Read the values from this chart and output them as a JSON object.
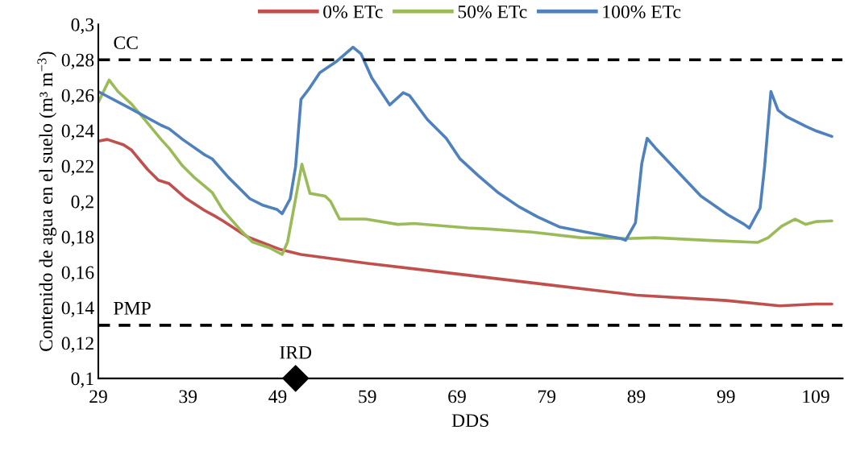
{
  "chart_data": {
    "type": "line",
    "xlabel": "DDS",
    "ylabel": "Contenido de agua en el suelo (m³ m$^{−3}$)",
    "xlim": [
      29,
      112
    ],
    "xticks": [
      29,
      39,
      49,
      59,
      69,
      79,
      89,
      99,
      109
    ],
    "ylim": [
      0.1,
      0.3
    ],
    "yticks": [
      {
        "value": 0.1,
        "label": "0,1"
      },
      {
        "value": 0.12,
        "label": "0,12"
      },
      {
        "value": 0.14,
        "label": "0,14"
      },
      {
        "value": 0.16,
        "label": "0,16"
      },
      {
        "value": 0.18,
        "label": "0,18"
      },
      {
        "value": 0.2,
        "label": "0,2"
      },
      {
        "value": 0.22,
        "label": "0,22"
      },
      {
        "value": 0.24,
        "label": "0,24"
      },
      {
        "value": 0.26,
        "label": "0,26"
      },
      {
        "value": 0.28,
        "label": "0,28"
      },
      {
        "value": 0.3,
        "label": "0,3"
      }
    ],
    "grid": false,
    "legend": "top",
    "line_style": "solid",
    "marker": "none",
    "ref_lines": [
      {
        "axis": "y",
        "value": 0.28,
        "label": "CC",
        "color": "#000000",
        "line_style": "dashed"
      },
      {
        "axis": "y",
        "value": 0.13,
        "label": "PMP",
        "color": "#000000",
        "line_style": "dashed"
      }
    ],
    "series": [
      {
        "name": "0% ETc",
        "color": "#c0504d",
        "x": [
          29,
          30.0,
          31.8,
          32.7,
          34.5,
          35.7,
          36.9,
          38.7,
          40.8,
          41.9,
          42.9,
          45.6,
          49.2,
          51.6,
          59,
          69,
          79,
          89,
          99,
          105,
          109,
          110.8
        ],
        "values": [
          0.234,
          0.235,
          0.232,
          0.229,
          0.218,
          0.212,
          0.21,
          0.202,
          0.195,
          0.192,
          0.189,
          0.18,
          0.173,
          0.17,
          0.165,
          0.159,
          0.153,
          0.147,
          0.144,
          0.141,
          0.142,
          0.142
        ]
      },
      {
        "name": "50% ETc",
        "color": "#9bbb59",
        "x": [
          29,
          30.2,
          31.2,
          32.7,
          34.2,
          36.0,
          36.9,
          38.4,
          39.6,
          41.7,
          42.9,
          45.0,
          46.2,
          48.0,
          49.5,
          50.1,
          51.0,
          51.7,
          52.6,
          54.3,
          54.9,
          55.9,
          58.8,
          62.4,
          64.2,
          70.2,
          72.6,
          77.4,
          82.8,
          87.8,
          91.1,
          96.8,
          102.5,
          103.7,
          105.2,
          106.7,
          107.9,
          109.1,
          110.8
        ],
        "values": [
          0.256,
          0.2685,
          0.262,
          0.255,
          0.246,
          0.235,
          0.23,
          0.22,
          0.214,
          0.205,
          0.195,
          0.183,
          0.177,
          0.174,
          0.17,
          0.177,
          0.2015,
          0.221,
          0.2045,
          0.203,
          0.2,
          0.19,
          0.19,
          0.187,
          0.1875,
          0.185,
          0.1844,
          0.1826,
          0.1795,
          0.179,
          0.1795,
          0.178,
          0.1768,
          0.1795,
          0.186,
          0.19,
          0.187,
          0.1886,
          0.189
        ]
      },
      {
        "name": "100% ETc",
        "color": "#4f81bd",
        "x": [
          29,
          32.4,
          36.0,
          36.9,
          38.4,
          40.8,
          41.7,
          43.5,
          45.9,
          47.4,
          48.9,
          49.5,
          50.4,
          51.0,
          51.6,
          52.5,
          53.7,
          55.5,
          57.4,
          58.3,
          59.5,
          61.5,
          63.0,
          63.7,
          65.7,
          67.8,
          69.3,
          71.4,
          73.5,
          75.9,
          78.0,
          80.4,
          83.4,
          87.3,
          87.8,
          88.9,
          89.6,
          90.2,
          91.1,
          93.5,
          96.2,
          99.2,
          101.0,
          101.6,
          102.8,
          103.3,
          104.0,
          104.8,
          105.8,
          107.9,
          109.1,
          110.8
        ],
        "values": [
          0.262,
          0.253,
          0.243,
          0.241,
          0.235,
          0.2265,
          0.224,
          0.2136,
          0.2015,
          0.1977,
          0.1955,
          0.193,
          0.2015,
          0.2197,
          0.2576,
          0.2636,
          0.2727,
          0.2788,
          0.2871,
          0.2833,
          0.2697,
          0.2545,
          0.2614,
          0.2598,
          0.2462,
          0.2356,
          0.2242,
          0.2144,
          0.2053,
          0.197,
          0.1912,
          0.1856,
          0.1826,
          0.179,
          0.178,
          0.1879,
          0.2212,
          0.2356,
          0.2303,
          0.2174,
          0.203,
          0.1924,
          0.1871,
          0.1849,
          0.1962,
          0.2197,
          0.2621,
          0.2515,
          0.2477,
          0.2424,
          0.2397,
          0.2367
        ]
      },
      {
        "name": "IRD",
        "type": "scatter",
        "marker": "diamond",
        "color": "#000000",
        "x": [
          51
        ],
        "values": [
          0.1
        ]
      }
    ]
  }
}
